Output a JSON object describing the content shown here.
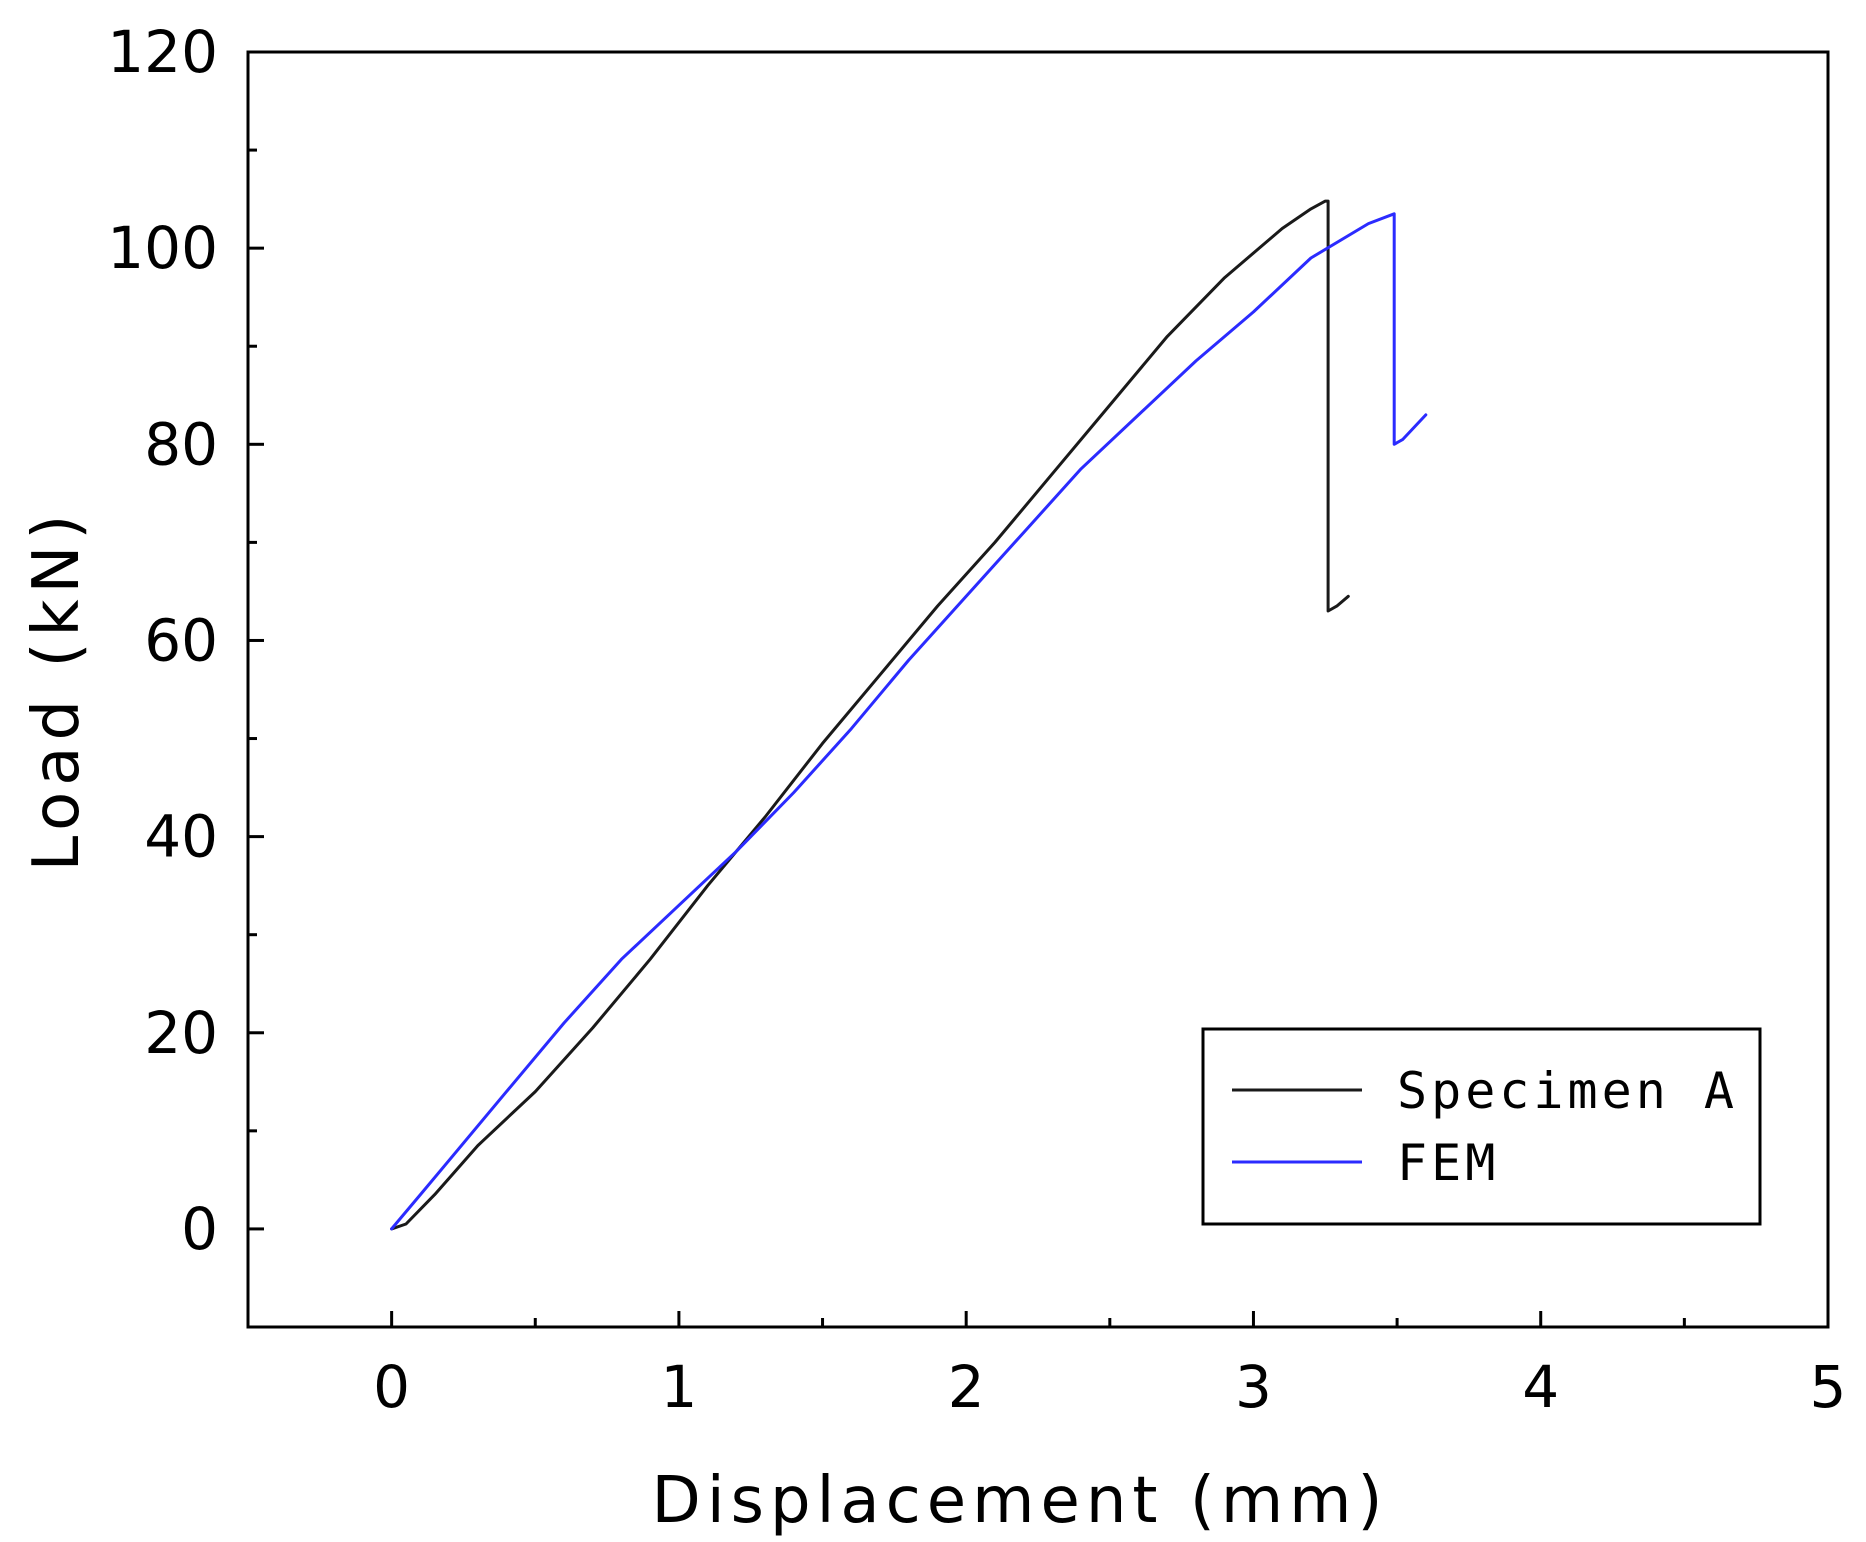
{
  "chart_data": {
    "type": "line",
    "title": "",
    "xlabel": "Displacement (mm)",
    "ylabel": "Load (kN)",
    "xlim": [
      -0.5,
      5
    ],
    "ylim": [
      -10,
      120
    ],
    "x_ticks": [
      0,
      1,
      2,
      3,
      4,
      5
    ],
    "y_ticks": [
      0,
      20,
      40,
      60,
      80,
      100,
      120
    ],
    "x_minor_step": 0.5,
    "y_minor_step": 10,
    "grid": false,
    "legend_position": "bottom-right",
    "series": [
      {
        "name": "Specimen A",
        "color": "#1a1a1a",
        "x": [
          0,
          0.05,
          0.15,
          0.3,
          0.5,
          0.7,
          0.9,
          1.1,
          1.3,
          1.5,
          1.7,
          1.9,
          2.1,
          2.3,
          2.5,
          2.7,
          2.9,
          3.1,
          3.2,
          3.25,
          3.26,
          3.26,
          3.29,
          3.33
        ],
        "y": [
          0,
          0.5,
          3.5,
          8.5,
          14,
          20.5,
          27.5,
          35,
          42,
          49.5,
          56.5,
          63.5,
          70,
          77,
          84,
          91,
          97,
          102,
          104,
          104.8,
          104.8,
          63,
          63.5,
          64.5
        ]
      },
      {
        "name": "FEM",
        "color": "#2b2bff",
        "x": [
          0,
          0.1,
          0.2,
          0.4,
          0.6,
          0.8,
          1.0,
          1.2,
          1.4,
          1.6,
          1.8,
          2.0,
          2.2,
          2.4,
          2.6,
          2.8,
          3.0,
          3.2,
          3.4,
          3.49,
          3.49,
          3.52,
          3.6
        ],
        "y": [
          0,
          3.5,
          7,
          14,
          21,
          27.5,
          33,
          38.5,
          44.5,
          51,
          58,
          64.5,
          71,
          77.5,
          83,
          88.5,
          93.5,
          99,
          102.5,
          103.5,
          80,
          80.5,
          83
        ]
      }
    ]
  }
}
